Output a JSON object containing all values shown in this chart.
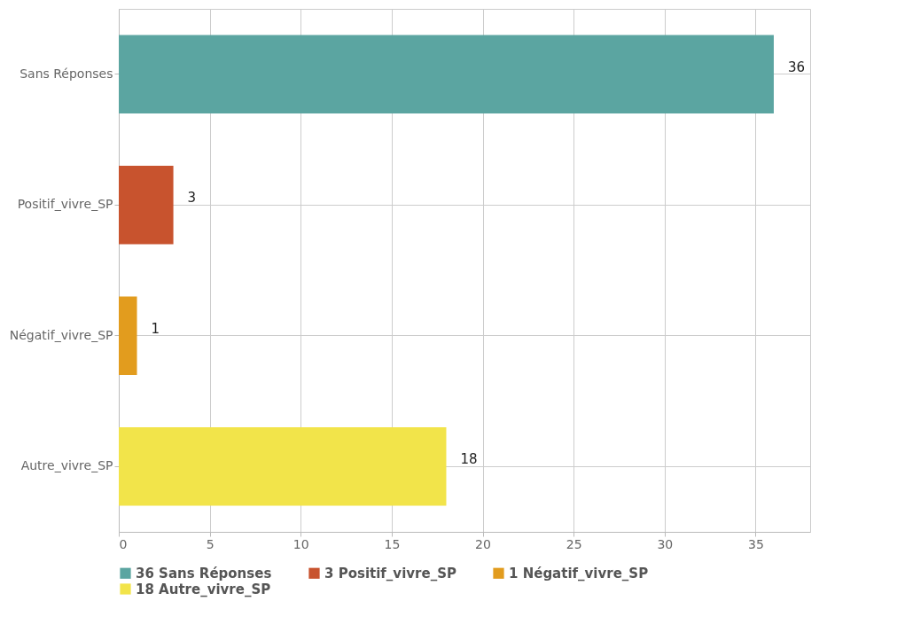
{
  "chart_data": {
    "type": "bar",
    "orientation": "horizontal",
    "categories": [
      "Sans Réponses",
      "Positif_vivre_SP",
      "Négatif_vivre_SP",
      "Autre_vivre_SP"
    ],
    "series": [
      {
        "name": "36 Sans Réponses",
        "color": "#5ba5a1",
        "values": [
          36,
          null,
          null,
          null
        ]
      },
      {
        "name": "3 Positif_vivre_SP",
        "color": "#c8532e",
        "values": [
          null,
          3,
          null,
          null
        ]
      },
      {
        "name": "1 Négatif_vivre_SP",
        "color": "#e29c1e",
        "values": [
          null,
          null,
          1,
          null
        ]
      },
      {
        "name": "18 Autre_vivre_SP",
        "color": "#f2e44a",
        "values": [
          null,
          null,
          null,
          18
        ]
      }
    ],
    "xlim": [
      0,
      38
    ],
    "xticks": [
      0,
      5,
      10,
      15,
      20,
      25,
      30,
      35
    ],
    "grid": true,
    "data_labels": true,
    "legend": "bottom"
  }
}
